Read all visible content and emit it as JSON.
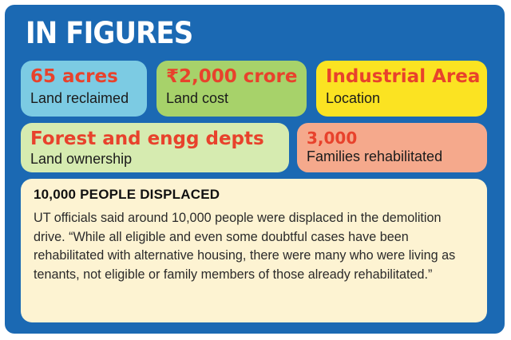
{
  "heading": "IN FIGURES",
  "cards": [
    {
      "value": "65 acres",
      "label": "Land reclaimed"
    },
    {
      "value": "₹2,000 crore",
      "label": "Land cost"
    },
    {
      "value": "Industrial Area",
      "label": "Location"
    },
    {
      "value": "Forest and engg depts",
      "label": "Land ownership"
    },
    {
      "value": "3,000",
      "label": "Families rehabilitated"
    }
  ],
  "story": {
    "title": "10,000 PEOPLE DISPLACED",
    "body": "UT officials said around 10,000 people were displaced in the demolition drive. “While all eligible and even some doubtful cases have been rehabilitated with alternative housing, there were many who were living as tenants, not eligible or family members of those already rehabilitated.”"
  },
  "colors": {
    "panel_background": "#1b69b3",
    "value_text": "#e8422c",
    "card_1": "#7ccbe3",
    "card_2": "#a7d26a",
    "card_3": "#fbe322",
    "card_4": "#d6ebb0",
    "card_5": "#f5a98c",
    "story_background": "#fdf3d2"
  }
}
